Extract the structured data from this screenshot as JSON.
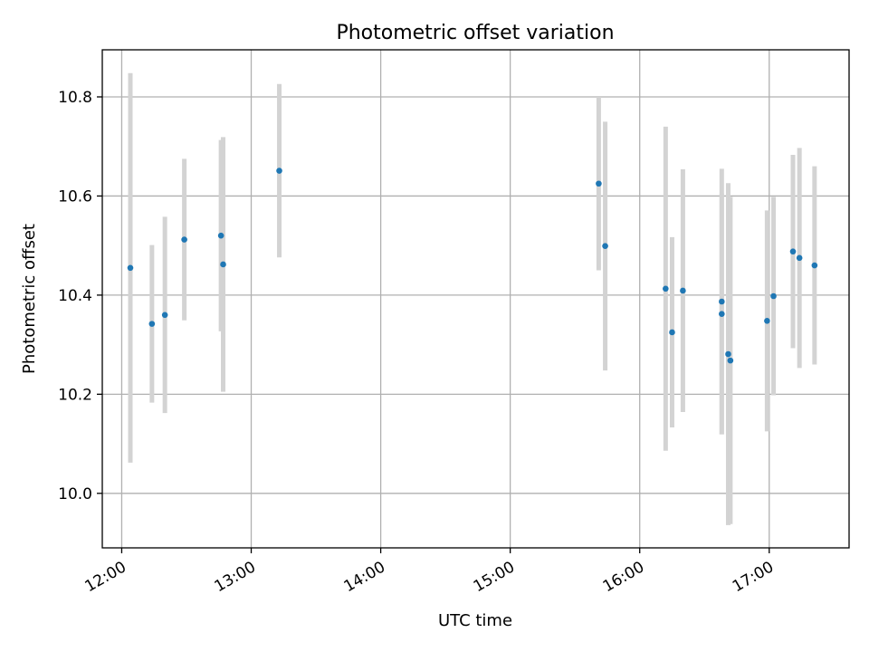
{
  "chart_data": {
    "type": "scatter",
    "title": "Photometric offset variation",
    "xlabel": "UTC time",
    "ylabel": "Photometric offset",
    "x_is_time": true,
    "xlim": [
      "11:51",
      "17:37"
    ],
    "ylim": [
      9.89,
      10.895
    ],
    "x_ticks": [
      "12:00",
      "13:00",
      "14:00",
      "15:00",
      "16:00",
      "17:00"
    ],
    "y_ticks": [
      10.0,
      10.2,
      10.4,
      10.6,
      10.8
    ],
    "y_tick_labels": [
      "10.0",
      "10.2",
      "10.4",
      "10.6",
      "10.8"
    ],
    "grid": true,
    "colors": {
      "point": "#1f77b4",
      "errorbar": "#d3d3d3",
      "grid": "#b0b0b0"
    },
    "points": [
      {
        "x": "12:04",
        "y": 10.455,
        "err": 0.393
      },
      {
        "x": "12:14",
        "y": 10.342,
        "err": 0.159
      },
      {
        "x": "12:20",
        "y": 10.36,
        "err": 0.198
      },
      {
        "x": "12:29",
        "y": 10.512,
        "err": 0.163
      },
      {
        "x": "12:46",
        "y": 10.52,
        "err": 0.193
      },
      {
        "x": "12:47",
        "y": 10.462,
        "err": 0.257
      },
      {
        "x": "13:13",
        "y": 10.651,
        "err": 0.175
      },
      {
        "x": "15:41",
        "y": 10.625,
        "err": 0.175
      },
      {
        "x": "15:44",
        "y": 10.499,
        "err": 0.251
      },
      {
        "x": "16:12",
        "y": 10.413,
        "err": 0.327
      },
      {
        "x": "16:15",
        "y": 10.325,
        "err": 0.192
      },
      {
        "x": "16:20",
        "y": 10.409,
        "err": 0.245
      },
      {
        "x": "16:38",
        "y": 10.387,
        "err": 0.268
      },
      {
        "x": "16:38",
        "y": 10.362,
        "err": 0.243
      },
      {
        "x": "16:41",
        "y": 10.281,
        "err": 0.345
      },
      {
        "x": "16:42",
        "y": 10.268,
        "err": 0.33
      },
      {
        "x": "16:59",
        "y": 10.348,
        "err": 0.223
      },
      {
        "x": "17:02",
        "y": 10.398,
        "err": 0.2
      },
      {
        "x": "17:11",
        "y": 10.488,
        "err": 0.195
      },
      {
        "x": "17:14",
        "y": 10.475,
        "err": 0.222
      },
      {
        "x": "17:21",
        "y": 10.46,
        "err": 0.2
      }
    ]
  }
}
